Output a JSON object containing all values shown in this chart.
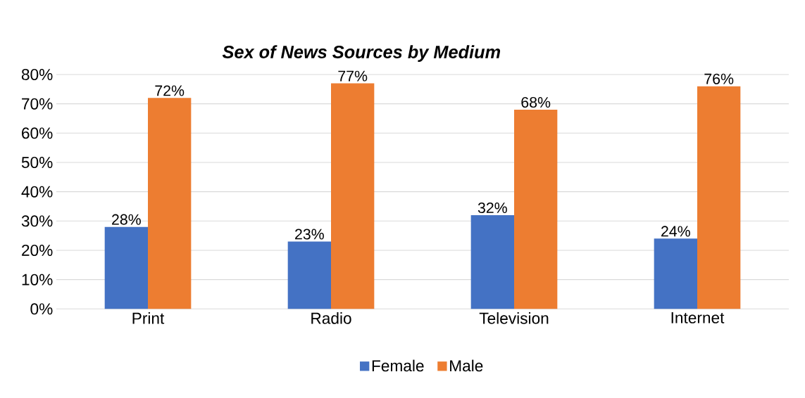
{
  "chart_data": {
    "type": "bar",
    "title": "Sex of News Sources by Medium",
    "categories": [
      "Print",
      "Radio",
      "Television",
      "Internet"
    ],
    "series": [
      {
        "name": "Female",
        "color": "#4472c4",
        "values": [
          28,
          23,
          32,
          24
        ],
        "value_labels": [
          "28%",
          "23%",
          "32%",
          "24%"
        ]
      },
      {
        "name": "Male",
        "color": "#ed7d31",
        "values": [
          72,
          77,
          68,
          76
        ],
        "value_labels": [
          "72%",
          "77%",
          "68%",
          "76%"
        ]
      }
    ],
    "ylim": [
      0,
      80
    ],
    "yticks": [
      {
        "value": 0,
        "label": "0%"
      },
      {
        "value": 10,
        "label": "10%"
      },
      {
        "value": 20,
        "label": "20%"
      },
      {
        "value": 30,
        "label": "30%"
      },
      {
        "value": 40,
        "label": "40%"
      },
      {
        "value": 50,
        "label": "50%"
      },
      {
        "value": 60,
        "label": "60%"
      },
      {
        "value": 70,
        "label": "70%"
      },
      {
        "value": 80,
        "label": "80%"
      }
    ],
    "grid": "y",
    "legend": "bottom"
  }
}
